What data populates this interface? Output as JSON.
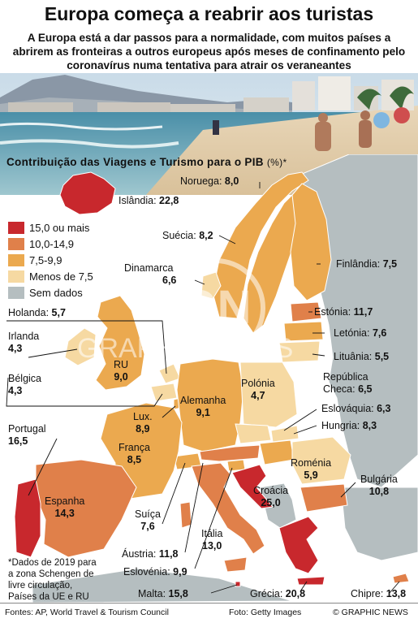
{
  "title": "Europa começa a reabrir aos turistas",
  "subtitle": "A Europa está a dar passos para a normalidade, com muitos países a abrirem as fronteiras a outros europeus após meses de confinamento pelo coronavírus numa tentativa para atrair os veraneantes",
  "chart_title": "Contribuição das Viagens e Turismo para o PIB",
  "chart_unit": "(%)*",
  "colors": {
    "cat_high": "#c8282d",
    "cat_10_15": "#e0804a",
    "cat_7_10": "#eba94f",
    "cat_low": "#f6d9a2",
    "no_data": "#b5bec0",
    "sea": "#ffffff"
  },
  "legend": [
    {
      "label": "15,0 ou mais",
      "color": "#c8282d"
    },
    {
      "label": "10,0-14,9",
      "color": "#e0804a"
    },
    {
      "label": "7,5-9,9",
      "color": "#eba94f"
    },
    {
      "label": "Menos de 7,5",
      "color": "#f6d9a2"
    },
    {
      "label": "Sem dados",
      "color": "#b5bec0"
    }
  ],
  "countries": {
    "islandia": {
      "name": "Islândia",
      "value": "22,8"
    },
    "noruega": {
      "name": "Noruega",
      "value": "8,0"
    },
    "suecia": {
      "name": "Suécia",
      "value": "8,2"
    },
    "finlandia": {
      "name": "Finlândia",
      "value": "7,5"
    },
    "dinamarca": {
      "name": "Dinamarca",
      "value": "6,6"
    },
    "estonia": {
      "name": "Estónia",
      "value": "11,7"
    },
    "letonia": {
      "name": "Letónia",
      "value": "7,6"
    },
    "lituania": {
      "name": "Lituânia",
      "value": "5,5"
    },
    "holanda": {
      "name": "Holanda",
      "value": "5,7"
    },
    "irlanda": {
      "name": "Irlanda",
      "value": "4,3"
    },
    "ru": {
      "name": "RU",
      "value": "9,0"
    },
    "belgica": {
      "name": "Bélgica",
      "value": "4,3"
    },
    "polonia": {
      "name": "Polónia",
      "value": "4,7"
    },
    "rep_checa": {
      "name_line1": "República",
      "name_line2": "Checa",
      "value": "6,5"
    },
    "alemanha": {
      "name": "Alemanha",
      "value": "9,1"
    },
    "lux": {
      "name": "Lux.",
      "value": "8,9"
    },
    "eslovaquia": {
      "name": "Eslováquia",
      "value": "6,3"
    },
    "hungria": {
      "name": "Hungria",
      "value": "8,3"
    },
    "portugal": {
      "name": "Portugal",
      "value": "16,5"
    },
    "franca": {
      "name": "França",
      "value": "8,5"
    },
    "romenia": {
      "name": "Roménia",
      "value": "5,9"
    },
    "bulgaria": {
      "name": "Bulgária",
      "value": "10,8"
    },
    "croacia": {
      "name": "Croácia",
      "value": "25,0"
    },
    "espanha": {
      "name": "Espanha",
      "value": "14,3"
    },
    "suica": {
      "name": "Suíça",
      "value": "7,6"
    },
    "italia": {
      "name": "Itália",
      "value": "13,0"
    },
    "austria": {
      "name": "Áustria",
      "value": "11,8"
    },
    "eslovenia": {
      "name": "Eslovénia",
      "value": "9,9"
    },
    "malta": {
      "name": "Malta",
      "value": "15,8"
    },
    "grecia": {
      "name": "Grécia",
      "value": "20,8"
    },
    "chipre": {
      "name": "Chipre",
      "value": "13,8"
    }
  },
  "note": "*Dados de 2019 para a zona Schengen de livre circulação, Países da UE e RU",
  "note_lines": [
    "*Dados de 2019 para",
    "a zona Schengen de",
    "livre circulação,",
    "Países da UE e RU"
  ],
  "footer": {
    "sources": "Fontes: AP, World Travel & Tourism Council",
    "photo": "Foto: Getty Images",
    "copyright": "© GRAPHIC NEWS"
  },
  "watermark": "GRAPHIC NEWS"
}
